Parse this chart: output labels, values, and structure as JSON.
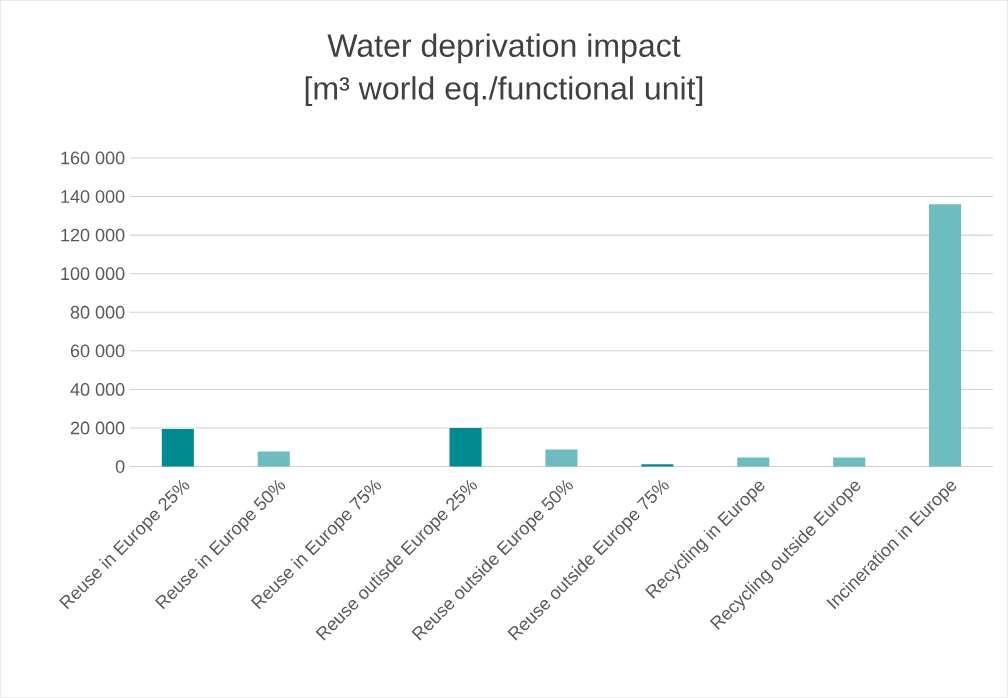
{
  "chart_data": {
    "type": "bar",
    "title": "Water deprivation impact\n[m³ world eq./functional unit]",
    "categories": [
      "Reuse in Europe 25%",
      "Reuse in Europe 50%",
      "Reuse in Europe 75%",
      "Reuse outisde Europe 25%",
      "Reuse outside Europe 50%",
      "Reuse outside Europe 75%",
      "Recycling in Europe",
      "Recycling outside Europe",
      "Incineration in Europe"
    ],
    "values": [
      19500,
      7800,
      0,
      20000,
      8800,
      1200,
      4700,
      4700,
      136000
    ],
    "colors": [
      "#008b92",
      "#6cbcc0",
      "#6cbcc0",
      "#008b92",
      "#6cbcc0",
      "#008b92",
      "#6cbcc0",
      "#6cbcc0",
      "#6cbcc0"
    ],
    "ylim": [
      0,
      160000
    ],
    "yticks": [
      {
        "value": 0,
        "label": "0"
      },
      {
        "value": 20000,
        "label": "20 000"
      },
      {
        "value": 40000,
        "label": "40 000"
      },
      {
        "value": 60000,
        "label": "60 000"
      },
      {
        "value": 80000,
        "label": "80 000"
      },
      {
        "value": 100000,
        "label": "100 000"
      },
      {
        "value": 120000,
        "label": "120 000"
      },
      {
        "value": 140000,
        "label": "140 000"
      },
      {
        "value": 160000,
        "label": "160 000"
      }
    ],
    "grid": "y"
  }
}
